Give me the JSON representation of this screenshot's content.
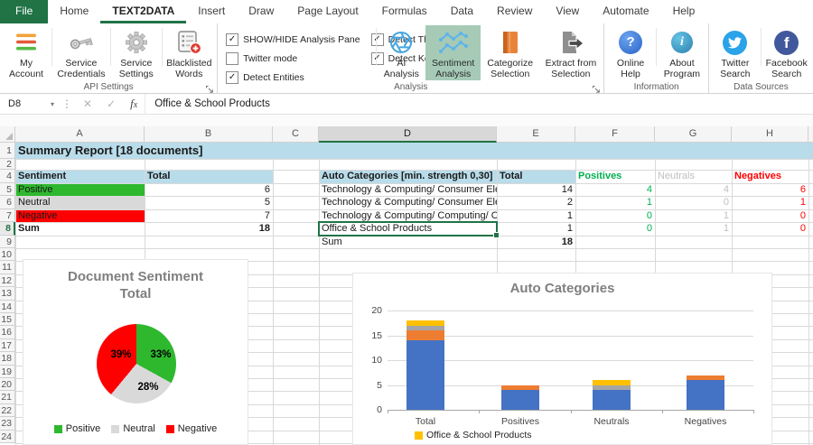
{
  "tabs": [
    "File",
    "Home",
    "TEXT2DATA",
    "Insert",
    "Draw",
    "Page Layout",
    "Formulas",
    "Data",
    "Review",
    "View",
    "Automate",
    "Help"
  ],
  "active_tab": "TEXT2DATA",
  "ribbon": {
    "groups": [
      {
        "label": "API Settings",
        "dialog_launcher": true,
        "buttons": [
          {
            "label": "My Account",
            "icon": "account-bars-icon"
          },
          {
            "label": "Service Credentials",
            "icon": "key-icon"
          },
          {
            "label": "Service Settings",
            "icon": "gear-icon"
          },
          {
            "label": "Blacklisted Words",
            "icon": "blacklist-icon"
          }
        ]
      },
      {
        "label": "Analysis",
        "dialog_launcher": true,
        "checkboxes": [
          {
            "label": "SHOW/HIDE Analysis Pane",
            "checked": true
          },
          {
            "label": "Twitter mode",
            "checked": false
          },
          {
            "label": "Detect Entities",
            "checked": true
          },
          {
            "label": "Detect Themes",
            "checked": true
          },
          {
            "label": "Detect Keywords",
            "checked": true
          }
        ],
        "buttons": [
          {
            "label": "AI Analysis",
            "icon": "openai-icon"
          },
          {
            "label": "Sentiment Analysis",
            "icon": "sentiment-chart-icon",
            "selected": true
          },
          {
            "label": "Categorize Selection",
            "icon": "orange-book-icon"
          },
          {
            "label": "Extract from Selection",
            "icon": "extract-document-icon"
          }
        ]
      },
      {
        "label": "Information",
        "buttons": [
          {
            "label": "Online Help",
            "icon": "help-icon"
          },
          {
            "label": "About Program",
            "icon": "info-icon"
          }
        ]
      },
      {
        "label": "Data Sources",
        "buttons": [
          {
            "label": "Twitter Search",
            "icon": "twitter-icon"
          },
          {
            "label": "Facebook Search",
            "icon": "facebook-icon"
          }
        ]
      }
    ]
  },
  "sheet": {
    "name_box": "D8",
    "formula_value": "Office & School Products",
    "columns": [
      "A",
      "B",
      "C",
      "D",
      "E",
      "F",
      "G",
      "H"
    ],
    "selection": {
      "column": "D",
      "row": 8
    },
    "banner": "Summary Report [18 documents]",
    "left_table": {
      "headers": [
        "Sentiment",
        "Total"
      ],
      "rows": [
        {
          "label": "Positive",
          "value": "6",
          "fill": "#2eb82e"
        },
        {
          "label": "Neutral",
          "value": "5",
          "fill": "#d9d9d9"
        },
        {
          "label": "Negative",
          "value": "7",
          "fill": "#ff0000"
        },
        {
          "label": "Sum",
          "value": "18",
          "bold": true
        }
      ]
    },
    "right_table": {
      "header": "Auto Categories [min. strength 0,30]",
      "total_header": "Total",
      "col_headers": [
        {
          "label": "Positives",
          "color": "#00b050",
          "bold": true
        },
        {
          "label": "Neutrals",
          "color": "#bfbfbf",
          "bold": false
        },
        {
          "label": "Negatives",
          "color": "#ff0000",
          "bold": true
        }
      ],
      "rows": [
        {
          "label": "Technology & Computing/ Consumer Electro",
          "total": "14",
          "pos": "4",
          "neu": "4",
          "neg": "6"
        },
        {
          "label": "Technology & Computing/ Consumer Electro",
          "total": "2",
          "pos": "1",
          "neu": "0",
          "neg": "1"
        },
        {
          "label": "Technology & Computing/ Computing/ Comp",
          "total": "1",
          "pos": "0",
          "neu": "1",
          "neg": "0"
        },
        {
          "label": "Office & School Products",
          "total": "1",
          "pos": "0",
          "neu": "1",
          "neg": "0"
        }
      ],
      "sum_label": "Sum",
      "sum_value": "18"
    }
  },
  "colors": {
    "accent_green": "#217346",
    "header_fill": "#b9dcea",
    "positive_text": "#00b050",
    "neutral_text": "#bfbfbf",
    "negative_text": "#ff0000",
    "selected_button_bg": "#a6cab6"
  },
  "chart_data": [
    {
      "type": "pie",
      "title": "Document Sentiment Total",
      "labels": [
        "Positive",
        "Neutral",
        "Negative"
      ],
      "values": [
        6,
        5,
        7
      ],
      "values_pct": [
        33,
        28,
        39
      ],
      "slice_labels": [
        "33%",
        "28%",
        "39%"
      ],
      "colors": [
        "#2eb82e",
        "#d9d9d9",
        "#ff0000"
      ],
      "legend_position": "bottom"
    },
    {
      "type": "bar",
      "stacked": true,
      "title": "Auto Categories",
      "categories": [
        "Total",
        "Positives",
        "Neutrals",
        "Negatives"
      ],
      "series": [
        {
          "name": "Technology & Computing/ Consumer Electro",
          "color": "#4472c4",
          "values": [
            14,
            4,
            4,
            6
          ]
        },
        {
          "name": "Technology & Computing/ Consumer Electro",
          "color": "#ed7d31",
          "values": [
            2,
            1,
            0,
            1
          ]
        },
        {
          "name": "Technology & Computing/ Computing/ Comp",
          "color": "#a5a5a5",
          "values": [
            1,
            0,
            1,
            0
          ]
        },
        {
          "name": "Office & School Products",
          "color": "#ffc000",
          "values": [
            1,
            0,
            1,
            0
          ]
        }
      ],
      "ylim": [
        0,
        20
      ],
      "yticks": [
        0,
        5,
        10,
        15,
        20
      ],
      "grid": true,
      "legend_visible": [
        "Office & School Products"
      ],
      "legend_position": "bottom"
    }
  ]
}
